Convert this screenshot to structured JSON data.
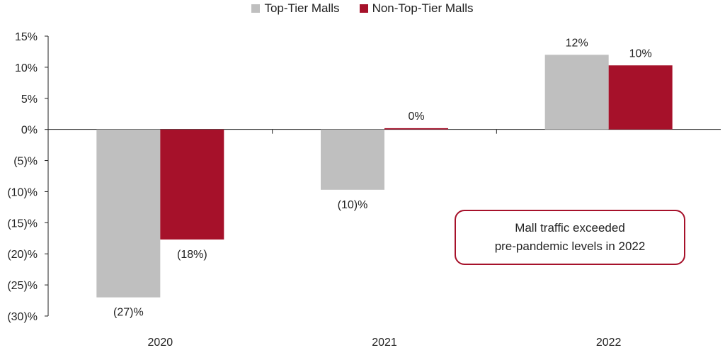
{
  "legend": {
    "items": [
      {
        "label": "Top-Tier Malls",
        "color": "#bfbfbf"
      },
      {
        "label": "Non-Top-Tier Malls",
        "color": "#a6112a"
      }
    ]
  },
  "annotation": {
    "line1": "Mall traffic exceeded",
    "line2": "pre-pandemic levels in 2022"
  },
  "chart_data": {
    "type": "bar",
    "categories": [
      "2020",
      "2021",
      "2022"
    ],
    "series": [
      {
        "name": "Top-Tier Malls",
        "values": [
          -27,
          -9.7,
          12
        ],
        "labels": [
          "(27)%",
          "(10)%",
          "12%"
        ],
        "color": "#bfbfbf"
      },
      {
        "name": "Non-Top-Tier Malls",
        "values": [
          -17.7,
          0.2,
          10.3
        ],
        "labels": [
          "(18%)",
          "0%",
          "10%"
        ],
        "color": "#a6112a"
      }
    ],
    "ylim": [
      -30,
      15
    ],
    "yticks": [
      15,
      10,
      5,
      0,
      -5,
      -10,
      -15,
      -20,
      -25,
      -30
    ],
    "ytick_labels": [
      "15%",
      "10%",
      "5%",
      "0%",
      "(5)%",
      "(10)%",
      "(15)%",
      "(20)%",
      "(25)%",
      "(30)%"
    ],
    "legend_position": "top-center",
    "grid": false
  }
}
